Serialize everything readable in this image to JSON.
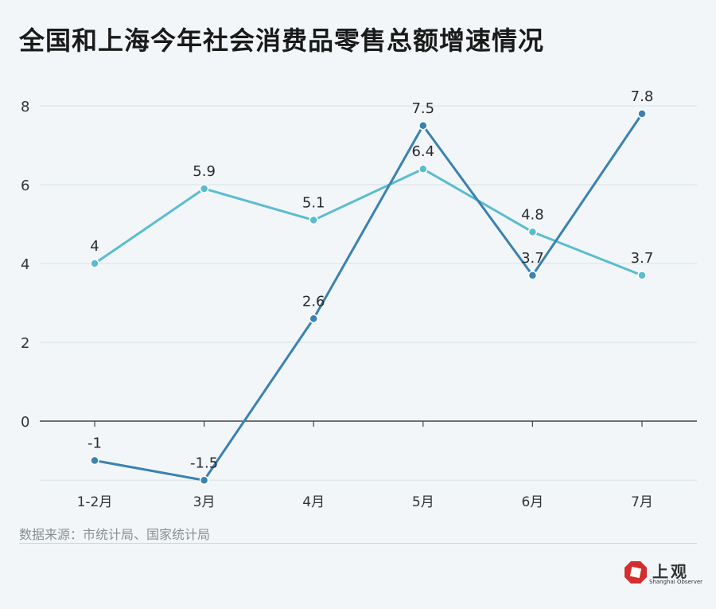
{
  "title": "全国和上海今年社会消费品零售总额增速情况",
  "source": "数据来源：市统计局、国家统计局",
  "brand": {
    "name": "上观",
    "subtitle": "Shanghai Observer"
  },
  "colors": {
    "series_1": "#3a82b0",
    "series_2": "#5bbcd0",
    "axis": "#444444",
    "grid": "#dde6ea",
    "brand": "#d32f2f"
  },
  "chart_data": {
    "type": "line",
    "categories": [
      "1-2月",
      "3月",
      "4月",
      "5月",
      "6月",
      "7月"
    ],
    "series": [
      {
        "values": [
          -1,
          -1.5,
          2.6,
          7.5,
          3.7,
          7.8
        ]
      },
      {
        "values": [
          4,
          5.9,
          5.1,
          6.4,
          4.8,
          3.7
        ]
      }
    ],
    "yticks": [
      0,
      2,
      4,
      6,
      8
    ],
    "ylim": [
      -1.5,
      8
    ],
    "grid": true
  }
}
